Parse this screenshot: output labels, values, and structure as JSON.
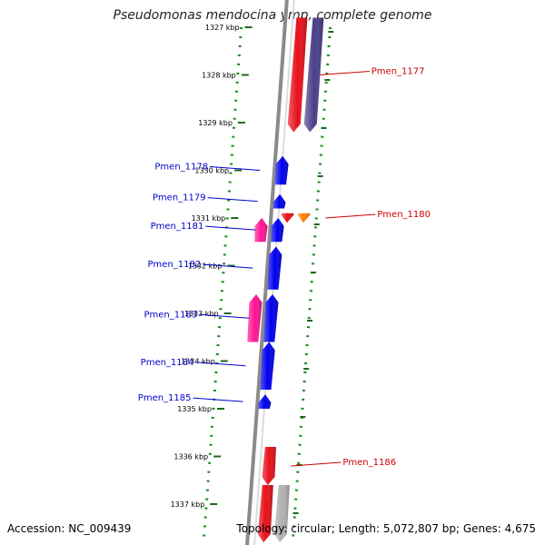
{
  "title": "Pseudomonas mendocina ymp, complete genome",
  "footer": {
    "accession": "Accession: NC_009439",
    "summary": "Topology: circular; Length: 5,072,807 bp; Genes: 4,675"
  },
  "ticks": [
    {
      "label": "1327 kbp",
      "kbp": 1327
    },
    {
      "label": "1328 kbp",
      "kbp": 1328
    },
    {
      "label": "1329 kbp",
      "kbp": 1329
    },
    {
      "label": "1330 kbp",
      "kbp": 1330
    },
    {
      "label": "1331 kbp",
      "kbp": 1331
    },
    {
      "label": "1332 kbp",
      "kbp": 1332
    },
    {
      "label": "1333 kbp",
      "kbp": 1333
    },
    {
      "label": "1334 kbp",
      "kbp": 1334
    },
    {
      "label": "1335 kbp",
      "kbp": 1335
    },
    {
      "label": "1336 kbp",
      "kbp": 1336
    },
    {
      "label": "1337 kbp",
      "kbp": 1337
    }
  ],
  "genes": [
    {
      "name": "Pmen_1177",
      "start_kbp": 1326.8,
      "end_kbp": 1329.2,
      "strand": "reverse",
      "color": "#e8101a",
      "label_color": "#cc0000",
      "labeled": true
    },
    {
      "name": "",
      "start_kbp": 1326.8,
      "end_kbp": 1329.2,
      "strand": "reverse",
      "color": "#4a3f8a",
      "label_color": "",
      "labeled": false
    },
    {
      "name": "Pmen_1178",
      "start_kbp": 1329.7,
      "end_kbp": 1330.3,
      "strand": "forward",
      "color": "#0000ee",
      "label_color": "#0000cc",
      "labeled": true
    },
    {
      "name": "Pmen_1179",
      "start_kbp": 1330.5,
      "end_kbp": 1330.8,
      "strand": "forward",
      "color": "#0000ee",
      "label_color": "#0000cc",
      "labeled": true
    },
    {
      "name": "Pmen_1180",
      "start_kbp": 1330.9,
      "end_kbp": 1331.1,
      "strand": "reverse",
      "color": "#ff7f00",
      "label_color": "#cc0000",
      "labeled": true
    },
    {
      "name": "",
      "start_kbp": 1330.9,
      "end_kbp": 1331.1,
      "strand": "reverse",
      "color": "#e8101a",
      "label_color": "",
      "labeled": false
    },
    {
      "name": "Pmen_1181",
      "start_kbp": 1331.0,
      "end_kbp": 1331.5,
      "strand": "forward",
      "color": "#0000ee",
      "label_color": "#0000cc",
      "labeled": true
    },
    {
      "name": "",
      "start_kbp": 1331.0,
      "end_kbp": 1331.5,
      "strand": "forward",
      "color": "#ff1493",
      "label_color": "",
      "labeled": false
    },
    {
      "name": "Pmen_1182",
      "start_kbp": 1331.6,
      "end_kbp": 1332.5,
      "strand": "forward",
      "color": "#0000ee",
      "label_color": "#0000cc",
      "labeled": true
    },
    {
      "name": "Pmen_1183",
      "start_kbp": 1332.6,
      "end_kbp": 1333.6,
      "strand": "forward",
      "color": "#0000ee",
      "label_color": "#0000cc",
      "labeled": true
    },
    {
      "name": "",
      "start_kbp": 1332.6,
      "end_kbp": 1333.6,
      "strand": "forward",
      "color": "#ff1493",
      "label_color": "",
      "labeled": false
    },
    {
      "name": "Pmen_1184",
      "start_kbp": 1333.6,
      "end_kbp": 1334.6,
      "strand": "forward",
      "color": "#0000ee",
      "label_color": "#0000cc",
      "labeled": true
    },
    {
      "name": "Pmen_1185",
      "start_kbp": 1334.7,
      "end_kbp": 1335.0,
      "strand": "forward",
      "color": "#0000ee",
      "label_color": "#0000cc",
      "labeled": true
    },
    {
      "name": "Pmen_1186",
      "start_kbp": 1335.8,
      "end_kbp": 1336.6,
      "strand": "reverse",
      "color": "#e8101a",
      "label_color": "#cc0000",
      "labeled": true
    },
    {
      "name": "",
      "start_kbp": 1336.6,
      "end_kbp": 1337.8,
      "strand": "reverse",
      "color": "#e8101a",
      "label_color": "",
      "labeled": false
    },
    {
      "name": "",
      "start_kbp": 1336.6,
      "end_kbp": 1337.8,
      "strand": "reverse",
      "color": "#b0b0b0",
      "label_color": "",
      "labeled": false
    }
  ],
  "colors": {
    "backbone": "#8a8a8a",
    "dotted_track": "#1a8a1a",
    "tick": "#1a6a1a",
    "label_forward": "#0000cc",
    "label_reverse": "#cc0000"
  }
}
